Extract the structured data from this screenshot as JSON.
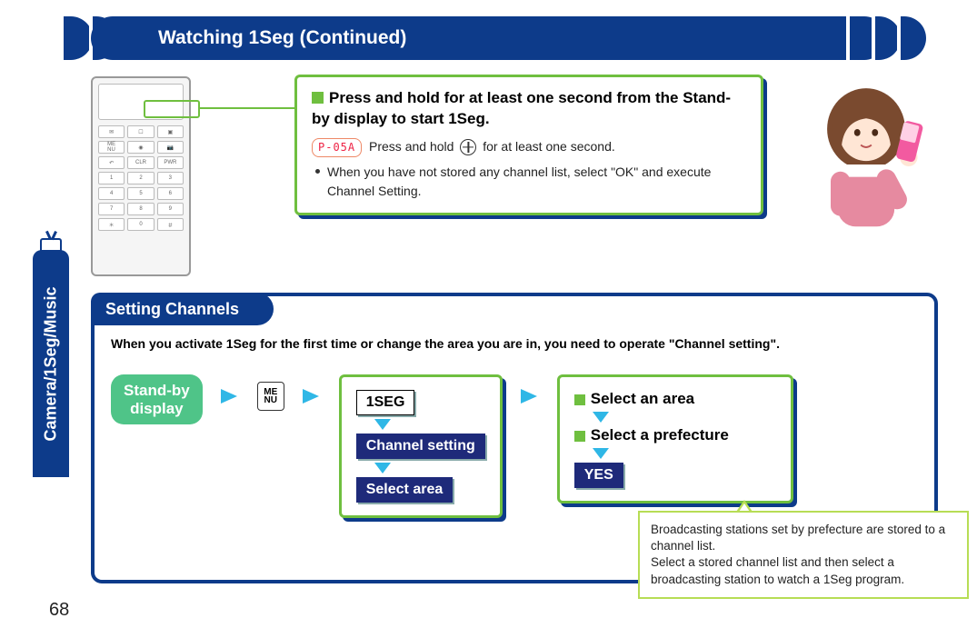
{
  "page": {
    "number": "68",
    "section_label": "Camera/1Seg/Music",
    "title": "Watching 1Seg (Continued)"
  },
  "colors": {
    "brand_blue": "#0d3b8a",
    "accent_green": "#6fbf3f",
    "lime": "#b7dd55",
    "mint": "#4fc488",
    "cyan": "#2fb7e6",
    "pill_dark": "#1e2a7a"
  },
  "callout": {
    "heading": "Press and hold for at least one second from the Stand-by display to start 1Seg.",
    "model": "P-05A",
    "line1_a": "Press and hold",
    "line1_b": "for at least one second.",
    "bullet": "When you have not stored any channel list, select \"OK\" and execute Channel Setting."
  },
  "panel": {
    "title": "Setting Channels",
    "subtitle": "When you activate 1Seg for the first time or change the area you are in, you need to operate \"Channel setting\".",
    "standby": "Stand-by display",
    "menu": "ME NU",
    "step1": {
      "a": "1SEG",
      "b": "Channel setting",
      "c": "Select area"
    },
    "step2": {
      "a": "Select an area",
      "b": "Select a prefecture",
      "yes": "YES"
    },
    "note": "Broadcasting stations set by prefecture are stored to a channel list.\nSelect a stored channel list and then select a broadcasting station to watch a 1Seg program."
  }
}
